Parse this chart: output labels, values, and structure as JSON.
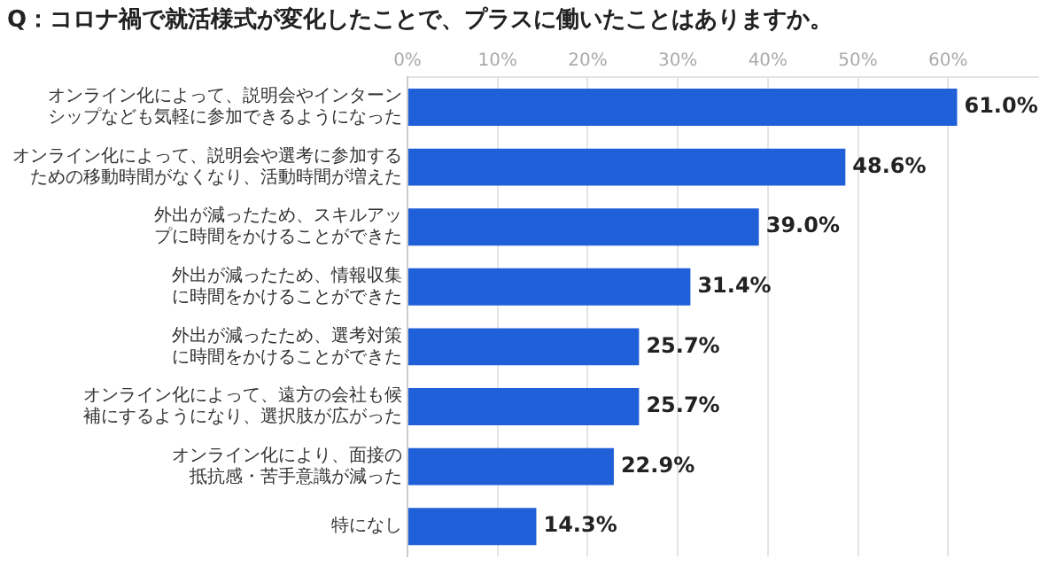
{
  "chart_data": {
    "type": "bar",
    "orientation": "horizontal",
    "title": "Q：コロナ禍で就活様式が変化したことで、プラスに働いたことはありますか。",
    "categories": [
      "オンライン化によって、説明会やインターンシップなども気軽に参加できるようになった",
      "オンライン化によって、説明会や選考に参加するための移動時間がなくなり、活動時間が増えた",
      "外出が減ったため、スキルアップに時間をかけることができた",
      "外出が減ったため、情報収集に時間をかけることができた",
      "外出が減ったため、選考対策に時間をかけることができた",
      "オンライン化によって、遠方の会社も候補にするようになり、選択肢が広がった",
      "オンライン化により、面接の抵抗感・苦手意識が減った",
      "特になし"
    ],
    "values": [
      61.0,
      48.6,
      39.0,
      31.4,
      25.7,
      25.7,
      22.9,
      14.3
    ],
    "value_labels": [
      "61.0%",
      "48.6%",
      "39.0%",
      "31.4%",
      "25.7%",
      "25.7%",
      "22.9%",
      "14.3%"
    ],
    "color": "#1f5fd8",
    "xlim": [
      0,
      70
    ],
    "xticks": [
      {
        "value": 0,
        "label": "0%"
      },
      {
        "value": 10,
        "label": "10%"
      },
      {
        "value": 20,
        "label": "20%"
      },
      {
        "value": 30,
        "label": "30%"
      },
      {
        "value": 40,
        "label": "40%"
      },
      {
        "value": 50,
        "label": "50%"
      },
      {
        "value": 60,
        "label": "60%"
      }
    ],
    "grid": "x",
    "legend": false
  }
}
